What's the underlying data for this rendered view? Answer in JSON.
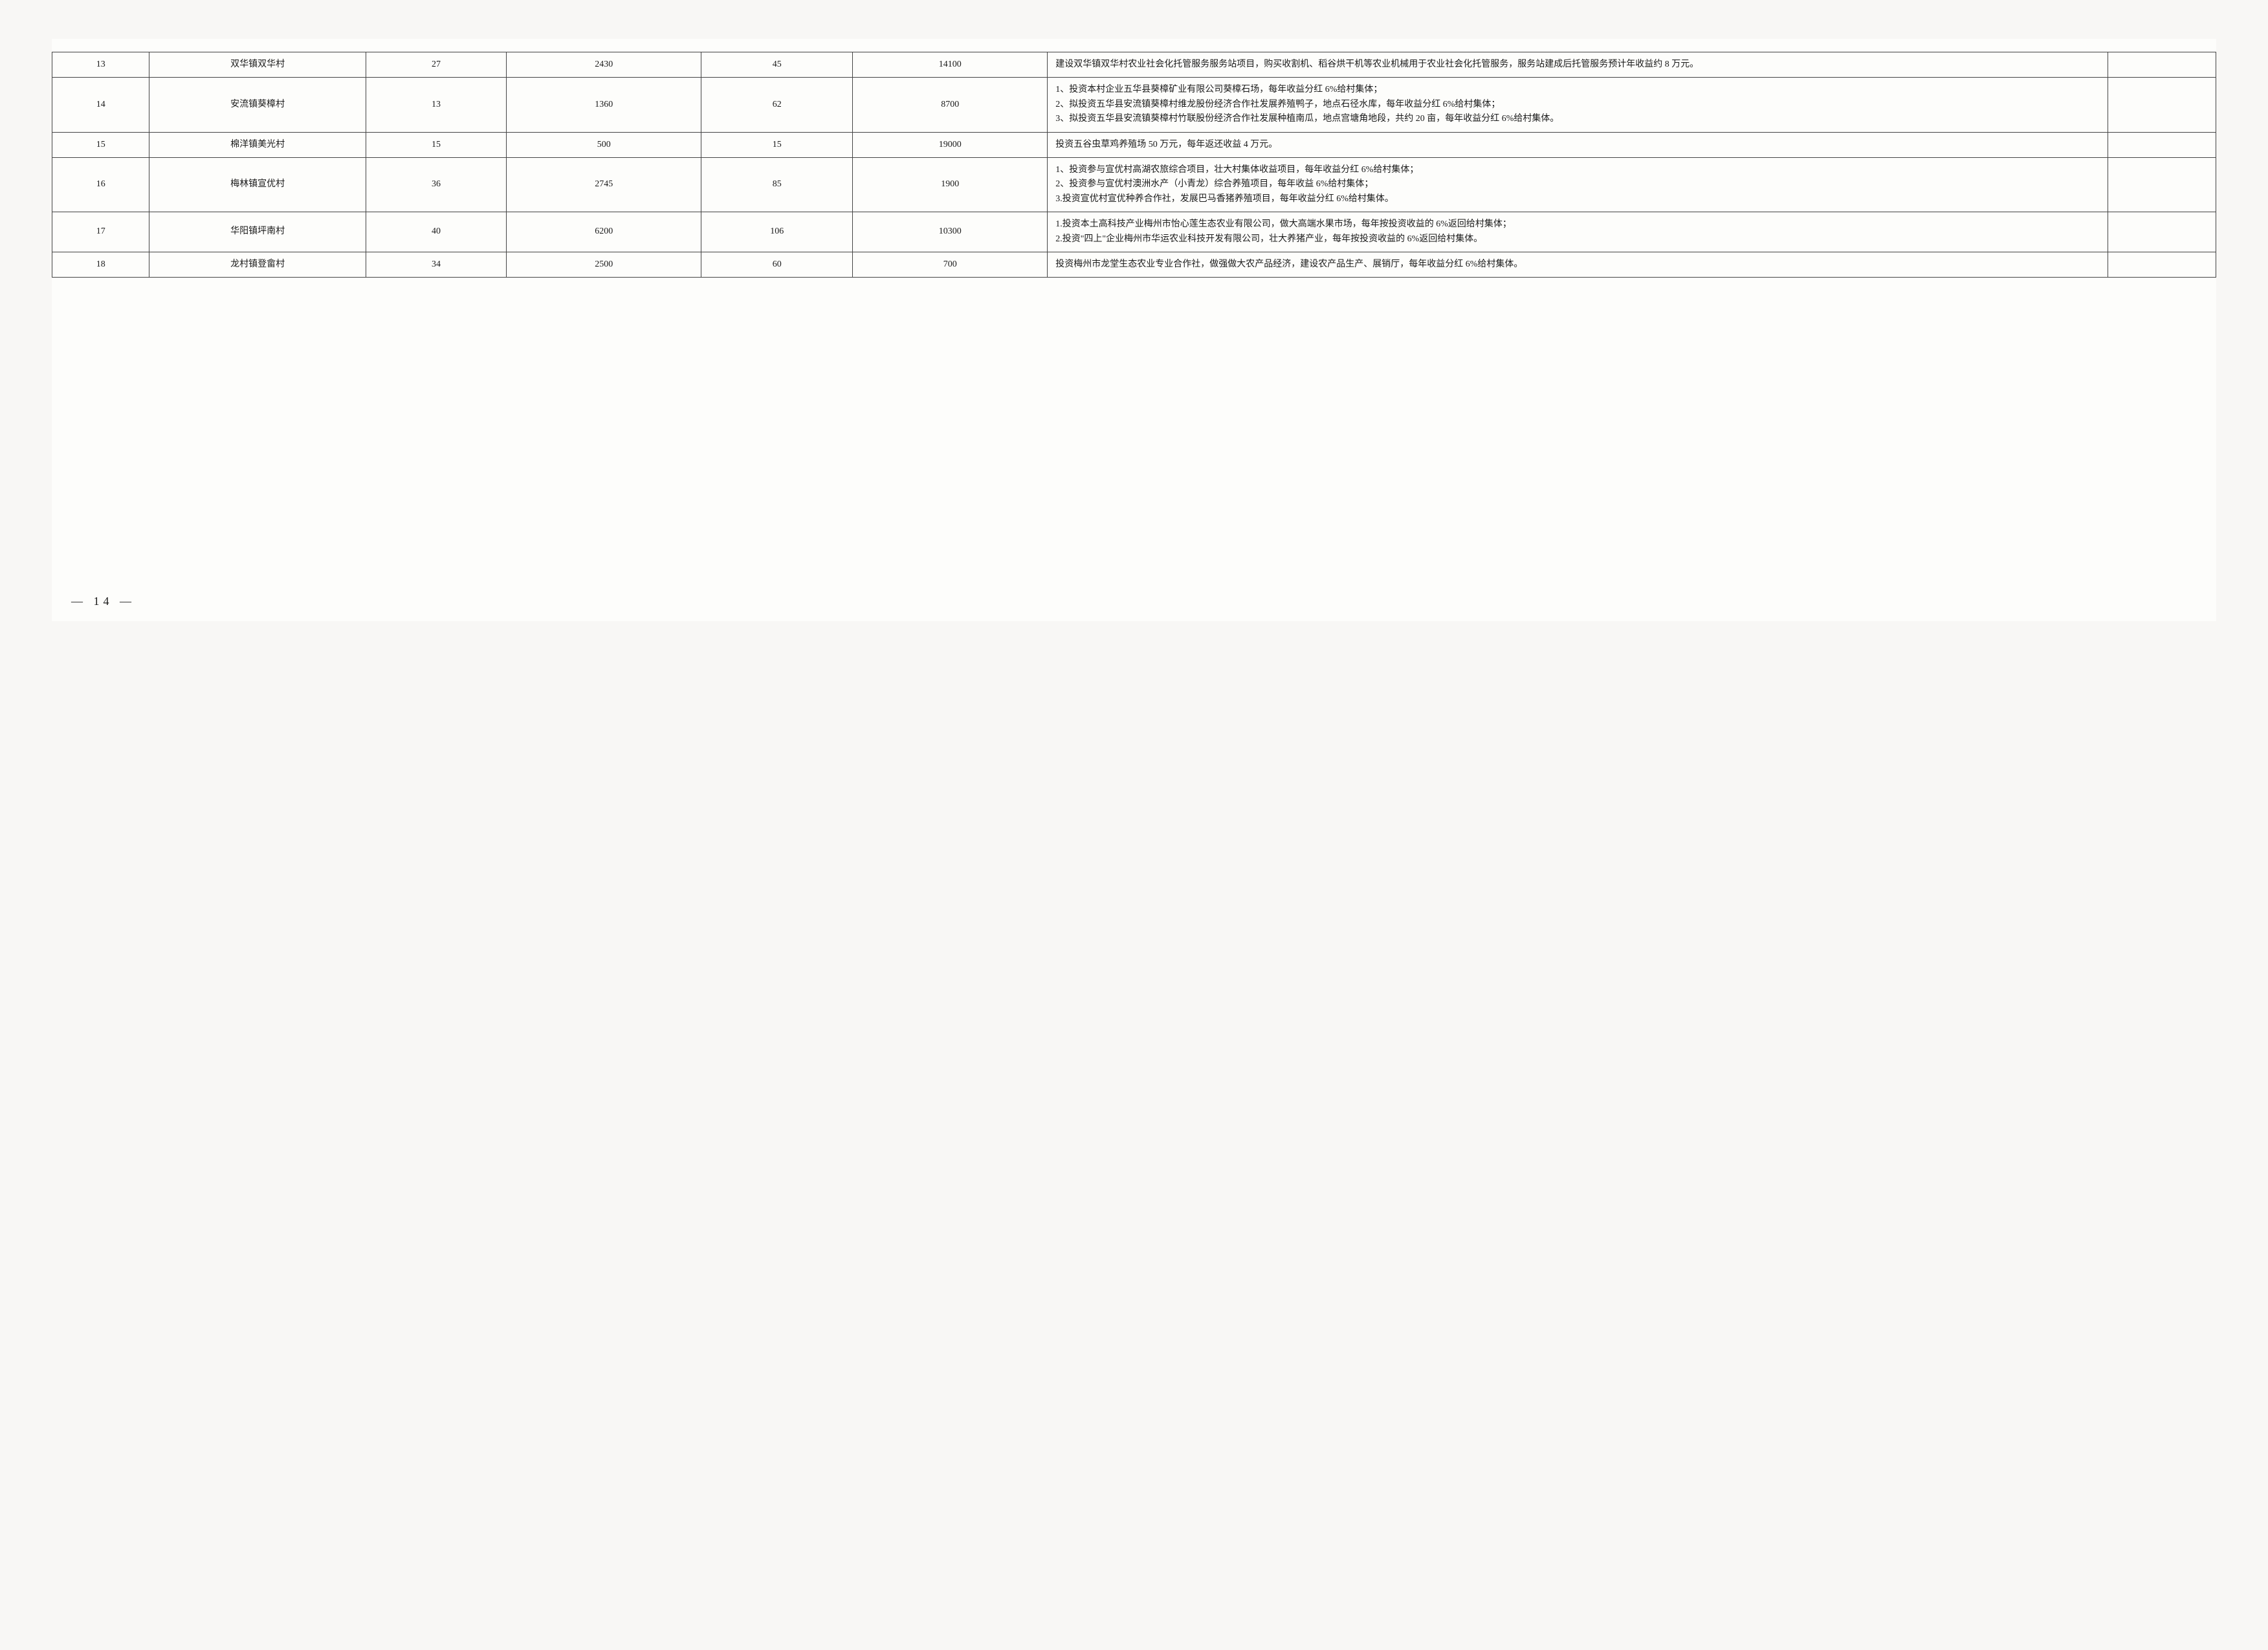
{
  "table": {
    "columns": [
      {
        "key": "idx",
        "class": "col-idx",
        "align": "center"
      },
      {
        "key": "name",
        "class": "col-name",
        "align": "center"
      },
      {
        "key": "c1",
        "class": "col-c1",
        "align": "center"
      },
      {
        "key": "c2",
        "class": "col-c2",
        "align": "center"
      },
      {
        "key": "c3",
        "class": "col-c3",
        "align": "center"
      },
      {
        "key": "c4",
        "class": "col-c4",
        "align": "center"
      },
      {
        "key": "desc",
        "class": "col-desc",
        "align": "left"
      },
      {
        "key": "last",
        "class": "col-last",
        "align": "center"
      }
    ],
    "border_color": "#444444",
    "background_color": "#fdfdfb",
    "font_size_pt": 10.5,
    "rows": [
      {
        "idx": "13",
        "name": "双华镇双华村",
        "c1": "27",
        "c2": "2430",
        "c3": "45",
        "c4": "14100",
        "desc": "建设双华镇双华村农业社会化托管服务服务站项目，购买收割机、稻谷烘干机等农业机械用于农业社会化托管服务，服务站建成后托管服务预计年收益约 8 万元。",
        "last": ""
      },
      {
        "idx": "14",
        "name": "安流镇葵樟村",
        "c1": "13",
        "c2": "1360",
        "c3": "62",
        "c4": "8700",
        "desc": "1、投资本村企业五华县葵樟矿业有限公司葵樟石场，每年收益分红 6%给村集体；\n2、拟投资五华县安流镇葵樟村维龙股份经济合作社发展养殖鸭子，地点石径水库，每年收益分红 6%给村集体；\n3、拟投资五华县安流镇葵樟村竹联股份经济合作社发展种植南瓜，地点宫塘角地段，共约 20 亩，每年收益分红 6%给村集体。",
        "last": ""
      },
      {
        "idx": "15",
        "name": "棉洋镇美光村",
        "c1": "15",
        "c2": "500",
        "c3": "15",
        "c4": "19000",
        "desc": "投资五谷虫草鸡养殖场 50 万元，每年返还收益 4 万元。",
        "last": ""
      },
      {
        "idx": "16",
        "name": "梅林镇宣优村",
        "c1": "36",
        "c2": "2745",
        "c3": "85",
        "c4": "1900",
        "desc": "1、投资参与宣优村高湖农旅综合项目，壮大村集体收益项目，每年收益分红 6%给村集体；\n2、投资参与宣优村澳洲水产（小青龙）综合养殖项目，每年收益 6%给村集体；\n3.投资宣优村宣优种养合作社，发展巴马香猪养殖项目，每年收益分红 6%给村集体。",
        "last": ""
      },
      {
        "idx": "17",
        "name": "华阳镇坪南村",
        "c1": "40",
        "c2": "6200",
        "c3": "106",
        "c4": "10300",
        "desc": "1.投资本土高科技产业梅州市怡心莲生态农业有限公司，做大高端水果市场，每年按投资收益的 6%返回给村集体；\n2.投资\"四上\"企业梅州市华运农业科技开发有限公司，壮大养猪产业，每年按投资收益的 6%返回给村集体。",
        "last": ""
      },
      {
        "idx": "18",
        "name": "龙村镇登畲村",
        "c1": "34",
        "c2": "2500",
        "c3": "60",
        "c4": "700",
        "desc": "投资梅州市龙堂生态农业专业合作社，做强做大农产品经济，建设农产品生产、展销厅，每年收益分红 6%给村集体。",
        "last": ""
      }
    ]
  },
  "page_number": "— 14 —"
}
